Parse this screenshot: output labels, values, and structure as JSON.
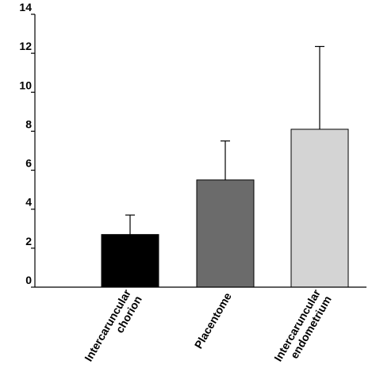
{
  "chart_data": {
    "type": "bar",
    "categories": [
      [
        "Intercaruncular",
        "chorion"
      ],
      [
        "Placentome"
      ],
      [
        "Intercaruncular",
        "endometrium"
      ]
    ],
    "values": [
      2.7,
      5.5,
      8.1
    ],
    "errors": [
      1.0,
      2.0,
      4.25
    ],
    "colors": [
      "#000000",
      "#6b6b6b",
      "#d4d4d4"
    ],
    "ylim": [
      0,
      14
    ],
    "yticks": [
      0,
      2,
      4,
      6,
      8,
      10,
      12,
      14
    ],
    "title": "",
    "xlabel": "",
    "ylabel": "",
    "grid": false
  }
}
